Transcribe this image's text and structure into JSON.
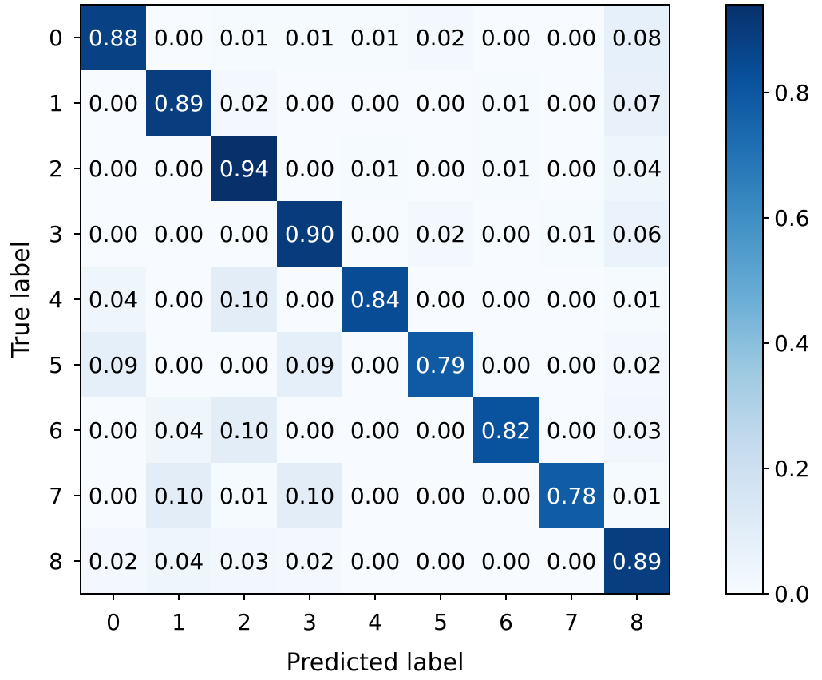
{
  "chart_data": {
    "type": "heatmap",
    "title": "",
    "xlabel": "Predicted label",
    "ylabel": "True label",
    "x_categories": [
      "0",
      "1",
      "2",
      "3",
      "4",
      "5",
      "6",
      "7",
      "8"
    ],
    "y_categories": [
      "0",
      "1",
      "2",
      "3",
      "4",
      "5",
      "6",
      "7",
      "8"
    ],
    "values": [
      [
        0.88,
        0.0,
        0.01,
        0.01,
        0.01,
        0.02,
        0.0,
        0.0,
        0.08
      ],
      [
        0.0,
        0.89,
        0.02,
        0.0,
        0.0,
        0.0,
        0.01,
        0.0,
        0.07
      ],
      [
        0.0,
        0.0,
        0.94,
        0.0,
        0.01,
        0.0,
        0.01,
        0.0,
        0.04
      ],
      [
        0.0,
        0.0,
        0.0,
        0.9,
        0.0,
        0.02,
        0.0,
        0.01,
        0.06
      ],
      [
        0.04,
        0.0,
        0.1,
        0.0,
        0.84,
        0.0,
        0.0,
        0.0,
        0.01
      ],
      [
        0.09,
        0.0,
        0.0,
        0.09,
        0.0,
        0.79,
        0.0,
        0.0,
        0.02
      ],
      [
        0.0,
        0.04,
        0.1,
        0.0,
        0.0,
        0.0,
        0.82,
        0.0,
        0.03
      ],
      [
        0.0,
        0.1,
        0.01,
        0.1,
        0.0,
        0.0,
        0.0,
        0.78,
        0.01
      ],
      [
        0.02,
        0.04,
        0.03,
        0.02,
        0.0,
        0.0,
        0.0,
        0.0,
        0.89
      ]
    ],
    "value_format": "0.00",
    "colormap": "Blues",
    "colorbar": {
      "range": [
        0.0,
        0.94
      ],
      "ticks": [
        0.0,
        0.2,
        0.4,
        0.6,
        0.8
      ],
      "tick_labels": [
        "0.0",
        "0.2",
        "0.4",
        "0.6",
        "0.8"
      ]
    },
    "grid": false,
    "legend": "none"
  }
}
